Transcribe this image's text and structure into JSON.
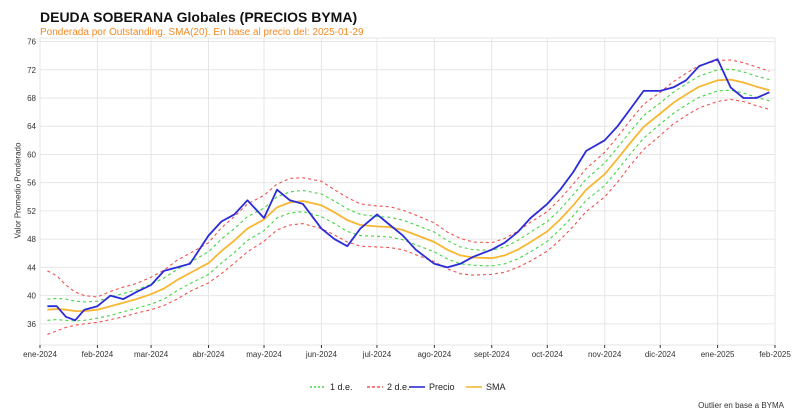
{
  "chart_data": {
    "type": "line",
    "title": "DEUDA SOBERANA Globales (PRECIOS BYMA)",
    "subtitle": "Ponderada por Outstanding. SMA(20). En base al precio del: 2025-01-29",
    "xlabel": "",
    "ylabel": "Valor Promedio Ponderado",
    "footnote": "Outlier en base a BYMA",
    "ylim": [
      33,
      76.5
    ],
    "yticks": [
      36,
      40,
      44,
      48,
      52,
      56,
      60,
      64,
      68,
      72,
      76
    ],
    "x_ticks": [
      "ene-2024",
      "feb-2024",
      "mar-2024",
      "abr-2024",
      "may-2024",
      "jun-2024",
      "jul-2024",
      "ago-2024",
      "sept-2024",
      "oct-2024",
      "nov-2024",
      "dic-2024",
      "ene-2025",
      "feb-2025"
    ],
    "x_domain": [
      "2024-01-01",
      "2025-02-01"
    ],
    "grid": true,
    "legend_position": "bottom-center",
    "legend": [
      "1 d.e.",
      "2 d.e.",
      "Precio",
      "SMA"
    ],
    "colors": {
      "precio": "#2b2bd9",
      "sma": "#f7b733",
      "de1": "#43d543",
      "de2": "#f05050",
      "grid": "#e6e6e6",
      "axis": "#333333"
    },
    "x": [
      "2024-01-05",
      "2024-01-10",
      "2024-01-15",
      "2024-01-20",
      "2024-01-25",
      "2024-02-01",
      "2024-02-08",
      "2024-02-15",
      "2024-02-22",
      "2024-03-01",
      "2024-03-08",
      "2024-03-15",
      "2024-03-22",
      "2024-04-01",
      "2024-04-08",
      "2024-04-15",
      "2024-04-22",
      "2024-05-01",
      "2024-05-08",
      "2024-05-15",
      "2024-05-22",
      "2024-06-01",
      "2024-06-08",
      "2024-06-15",
      "2024-06-22",
      "2024-07-01",
      "2024-07-08",
      "2024-07-15",
      "2024-07-22",
      "2024-08-01",
      "2024-08-08",
      "2024-08-15",
      "2024-08-22",
      "2024-09-01",
      "2024-09-08",
      "2024-09-15",
      "2024-09-22",
      "2024-10-01",
      "2024-10-08",
      "2024-10-15",
      "2024-10-22",
      "2024-11-01",
      "2024-11-08",
      "2024-11-15",
      "2024-11-22",
      "2024-12-01",
      "2024-12-08",
      "2024-12-15",
      "2024-12-22",
      "2025-01-01",
      "2025-01-08",
      "2025-01-15",
      "2025-01-22",
      "2025-01-29"
    ],
    "series": [
      {
        "name": "Precio",
        "values": [
          38.5,
          38.5,
          37.0,
          36.5,
          38.0,
          38.5,
          40.0,
          39.5,
          40.5,
          41.5,
          43.5,
          44.0,
          44.5,
          48.5,
          50.5,
          51.5,
          53.5,
          51.0,
          55.0,
          53.5,
          53.0,
          49.5,
          48.0,
          47.0,
          49.5,
          51.5,
          50.0,
          48.5,
          46.5,
          44.5,
          44.0,
          44.5,
          45.5,
          46.5,
          47.5,
          49.0,
          51.0,
          53.0,
          55.0,
          57.5,
          60.5,
          62.0,
          64.0,
          66.5,
          69.0,
          69.0,
          69.5,
          70.5,
          72.5,
          73.5,
          69.5,
          68.0,
          68.0,
          68.8
        ]
      },
      {
        "name": "SMA",
        "values": [
          38.0,
          38.1,
          38.0,
          37.8,
          37.8,
          38.0,
          38.5,
          39.0,
          39.5,
          40.2,
          41.0,
          42.2,
          43.2,
          44.6,
          46.3,
          47.8,
          49.5,
          50.8,
          52.5,
          53.2,
          53.4,
          52.8,
          51.8,
          50.7,
          50.0,
          49.8,
          49.7,
          49.3,
          48.6,
          47.6,
          46.5,
          45.7,
          45.4,
          45.3,
          45.7,
          46.5,
          47.6,
          49.1,
          50.8,
          52.8,
          55.0,
          57.2,
          59.4,
          61.7,
          63.9,
          65.8,
          67.3,
          68.5,
          69.6,
          70.5,
          70.6,
          70.2,
          69.6,
          69.1
        ]
      },
      {
        "name": "1 d.e. sup",
        "values": [
          39.5,
          39.6,
          39.5,
          39.2,
          39.1,
          39.2,
          39.8,
          40.3,
          40.8,
          41.6,
          42.5,
          43.7,
          44.7,
          46.2,
          48.0,
          49.5,
          51.2,
          52.4,
          54.0,
          54.7,
          54.9,
          54.4,
          53.4,
          52.3,
          51.5,
          51.2,
          51.1,
          50.7,
          50.0,
          49.0,
          47.8,
          46.9,
          46.5,
          46.4,
          46.9,
          47.8,
          49.0,
          50.5,
          52.2,
          54.3,
          56.5,
          58.8,
          61.0,
          63.3,
          65.5,
          67.3,
          68.8,
          70.0,
          71.1,
          72.0,
          72.1,
          71.7,
          71.1,
          70.6
        ]
      },
      {
        "name": "1 d.e. inf",
        "values": [
          36.5,
          36.6,
          36.5,
          36.4,
          36.5,
          36.8,
          37.2,
          37.7,
          38.2,
          38.8,
          39.5,
          40.7,
          41.7,
          43.0,
          44.6,
          46.1,
          47.8,
          49.2,
          51.0,
          51.7,
          51.9,
          51.2,
          50.2,
          49.1,
          48.5,
          48.4,
          48.3,
          47.9,
          47.2,
          46.2,
          45.2,
          44.5,
          44.3,
          44.2,
          44.5,
          45.2,
          46.2,
          47.7,
          49.4,
          51.3,
          53.5,
          55.6,
          57.8,
          60.1,
          62.3,
          64.3,
          65.8,
          67.0,
          68.1,
          69.0,
          69.1,
          68.7,
          68.1,
          67.6
        ]
      },
      {
        "name": "2 d.e. sup",
        "values": [
          43.5,
          42.8,
          41.5,
          40.5,
          40.0,
          39.8,
          40.6,
          41.2,
          41.7,
          42.6,
          43.6,
          45.0,
          46.0,
          47.5,
          49.6,
          51.2,
          53.0,
          54.2,
          55.8,
          56.6,
          56.7,
          56.2,
          55.0,
          53.9,
          53.0,
          52.7,
          52.6,
          52.1,
          51.4,
          50.3,
          49.0,
          48.1,
          47.6,
          47.5,
          48.1,
          49.1,
          50.4,
          51.9,
          53.7,
          55.8,
          58.0,
          60.3,
          62.5,
          64.9,
          67.1,
          68.8,
          70.3,
          71.5,
          72.6,
          73.3,
          73.4,
          73.0,
          72.4,
          71.8
        ]
      },
      {
        "name": "2 d.e. inf",
        "values": [
          34.5,
          35.0,
          35.5,
          35.8,
          36.0,
          36.2,
          36.6,
          37.0,
          37.5,
          38.0,
          38.6,
          39.5,
          40.6,
          41.8,
          43.1,
          44.6,
          46.2,
          47.7,
          49.3,
          50.0,
          50.2,
          49.5,
          48.6,
          47.6,
          47.0,
          46.9,
          46.8,
          46.5,
          45.8,
          44.8,
          43.8,
          43.1,
          42.9,
          43.0,
          43.3,
          44.0,
          44.9,
          46.3,
          47.9,
          49.8,
          51.9,
          54.0,
          56.1,
          58.5,
          60.7,
          62.7,
          64.3,
          65.5,
          66.6,
          67.5,
          67.8,
          67.5,
          66.9,
          66.4
        ]
      }
    ]
  }
}
